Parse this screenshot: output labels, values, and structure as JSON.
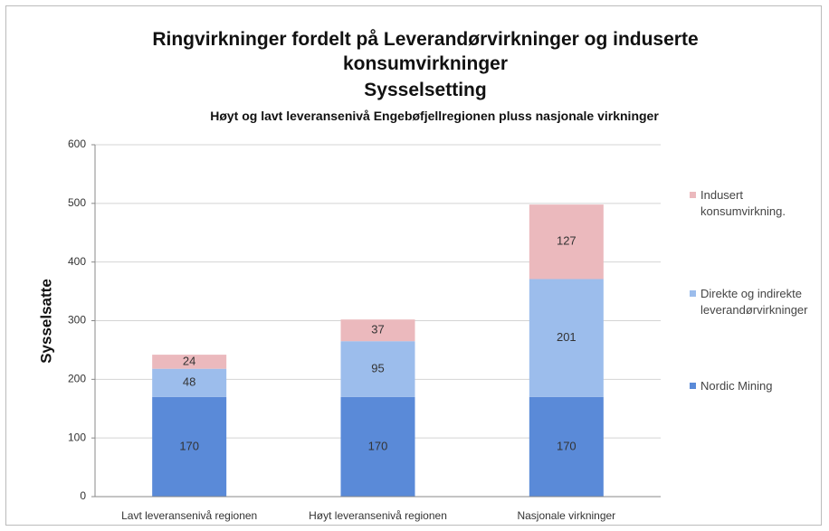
{
  "chart_data": {
    "type": "stacked_bar",
    "title": "Ringvirkninger fordelt på Leverandørvirkninger og induserte konsumvirkninger",
    "subtitle": "Sysselsetting",
    "subtitle2": "Høyt og lavt leveransenivå Engebøfjellregionen pluss nasjonale virkninger",
    "y_label": "Sysselsatte",
    "categories": [
      "Lavt leveransenivå regionen",
      "Høyt leveransenivå regionen",
      "Nasjonale virkninger"
    ],
    "series": [
      {
        "name": "Nordic Mining",
        "color": "#5a8ad8",
        "values": [
          170,
          170,
          170
        ]
      },
      {
        "name": "Direkte og indirekte leverandørvirkninger",
        "color": "#9cbdec",
        "values": [
          48,
          95,
          201
        ]
      },
      {
        "name": "Indusert konsumvirkning.",
        "color": "#ebb9bd",
        "values": [
          24,
          37,
          127
        ]
      }
    ],
    "ylim": [
      0,
      600
    ],
    "yticks": [
      0,
      100,
      200,
      300,
      400,
      500,
      600
    ],
    "grid": true,
    "legend": "right"
  }
}
